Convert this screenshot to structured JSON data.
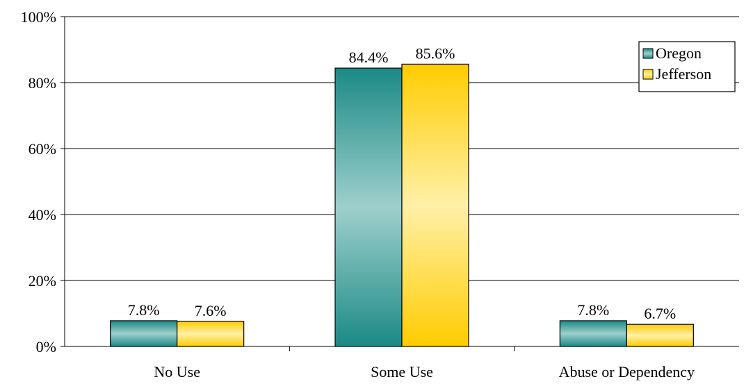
{
  "chart_data": {
    "type": "bar",
    "title": "",
    "xlabel": "",
    "ylabel": "",
    "categories": [
      "No Use",
      "Some Use",
      "Abuse or Dependency"
    ],
    "series": [
      {
        "name": "Oregon",
        "values": [
          7.8,
          84.4,
          7.8
        ],
        "labels": [
          "7.8%",
          "84.4%",
          "7.8%"
        ],
        "color": "#1b8a85"
      },
      {
        "name": "Jefferson",
        "values": [
          7.6,
          85.6,
          6.7
        ],
        "labels": [
          "7.6%",
          "85.6%",
          "6.7%"
        ],
        "color": "#ffcc00"
      }
    ],
    "ylim": [
      0,
      100
    ],
    "yticks": [
      0,
      20,
      40,
      60,
      80,
      100
    ],
    "ytick_labels": [
      "0%",
      "20%",
      "40%",
      "60%",
      "80%",
      "100%"
    ],
    "grid": true,
    "legend_position": "top-right"
  }
}
